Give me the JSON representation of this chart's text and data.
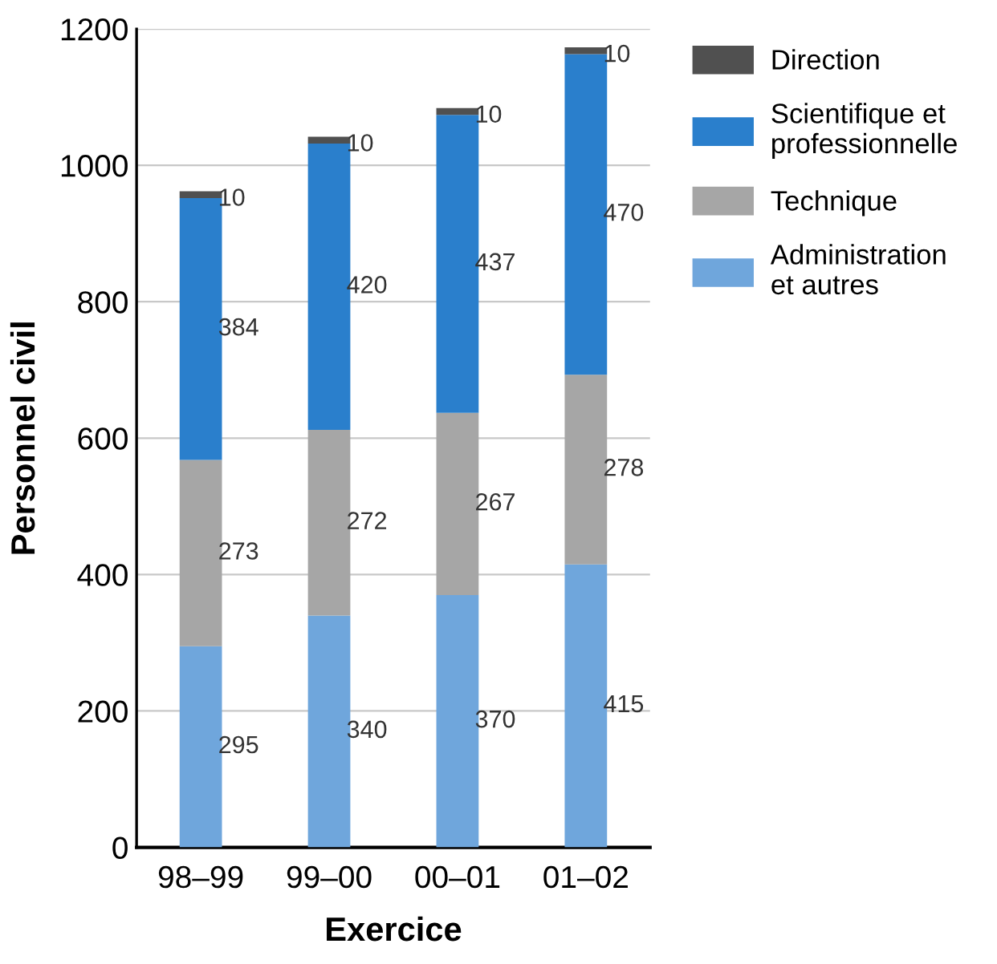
{
  "chart_data": {
    "type": "bar",
    "stacked": true,
    "xlabel": "Exercice",
    "ylabel": "Personnel civil",
    "categories": [
      "98–99",
      "99–00",
      "00–01",
      "01–02"
    ],
    "series": [
      {
        "name": "Administration\net autres",
        "color": "#6fa6dc",
        "values": [
          295,
          340,
          370,
          415
        ]
      },
      {
        "name": "Technique",
        "color": "#a6a6a6",
        "values": [
          273,
          272,
          267,
          278
        ]
      },
      {
        "name": "Scientifique et\nprofessionnelle",
        "color": "#2a7fcc",
        "values": [
          384,
          420,
          437,
          470
        ]
      },
      {
        "name": "Direction",
        "color": "#505050",
        "values": [
          10,
          10,
          10,
          10
        ]
      }
    ],
    "ylim": [
      0,
      1200
    ],
    "yticks": [
      0,
      200,
      400,
      600,
      800,
      1000,
      1200
    ],
    "grid": "y",
    "legend": "right",
    "data_labels": true
  }
}
